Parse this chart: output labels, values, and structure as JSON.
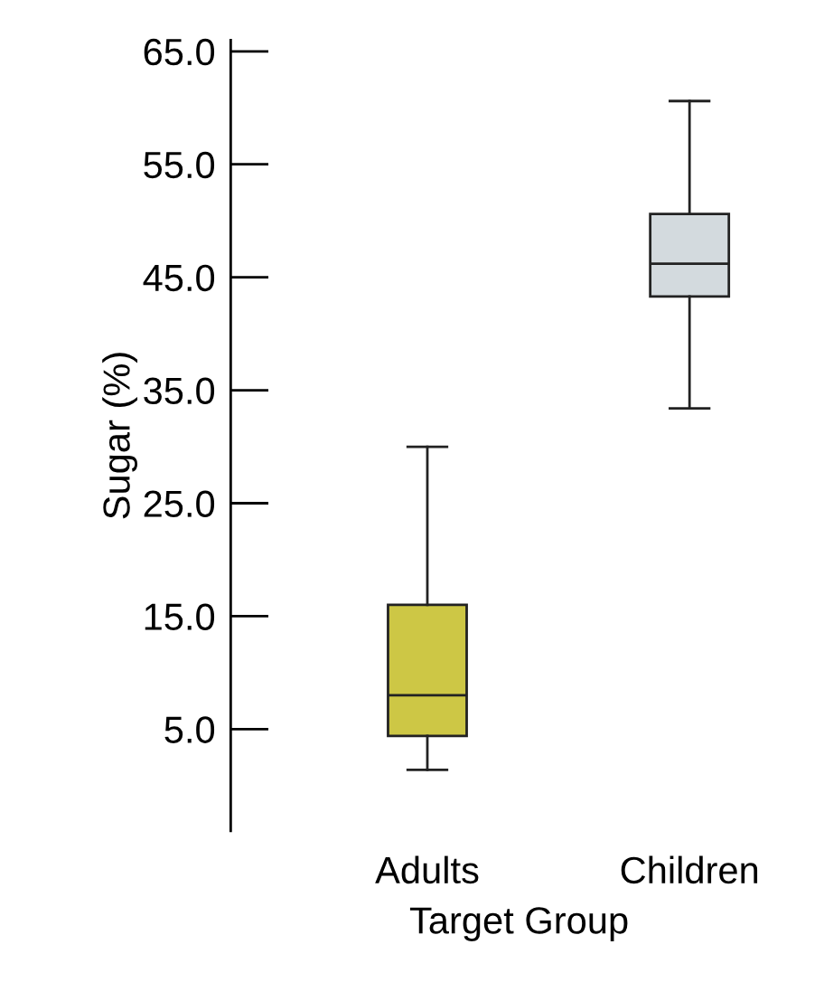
{
  "chart_data": {
    "type": "box",
    "xlabel": "Target Group",
    "ylabel": "Sugar (%)",
    "categories": [
      "Adults",
      "Children"
    ],
    "colors": [
      "#cdc745",
      "#d3dade"
    ],
    "boxes": [
      {
        "low": 1.4,
        "q1": 4.4,
        "median": 8.0,
        "q3": 16.0,
        "high": 30.0
      },
      {
        "low": 33.4,
        "q1": 43.3,
        "median": 46.2,
        "q3": 50.6,
        "high": 60.6
      }
    ],
    "ylim": [
      -4,
      66
    ],
    "yticks": [
      {
        "value": 5,
        "label": "5.0"
      },
      {
        "value": 15,
        "label": "15.0"
      },
      {
        "value": 25,
        "label": "25.0"
      },
      {
        "value": 35,
        "label": "35.0"
      },
      {
        "value": 45,
        "label": "45.0"
      },
      {
        "value": 55,
        "label": "55.0"
      },
      {
        "value": 65,
        "label": "65.0"
      }
    ],
    "grid": false,
    "legend": false
  }
}
